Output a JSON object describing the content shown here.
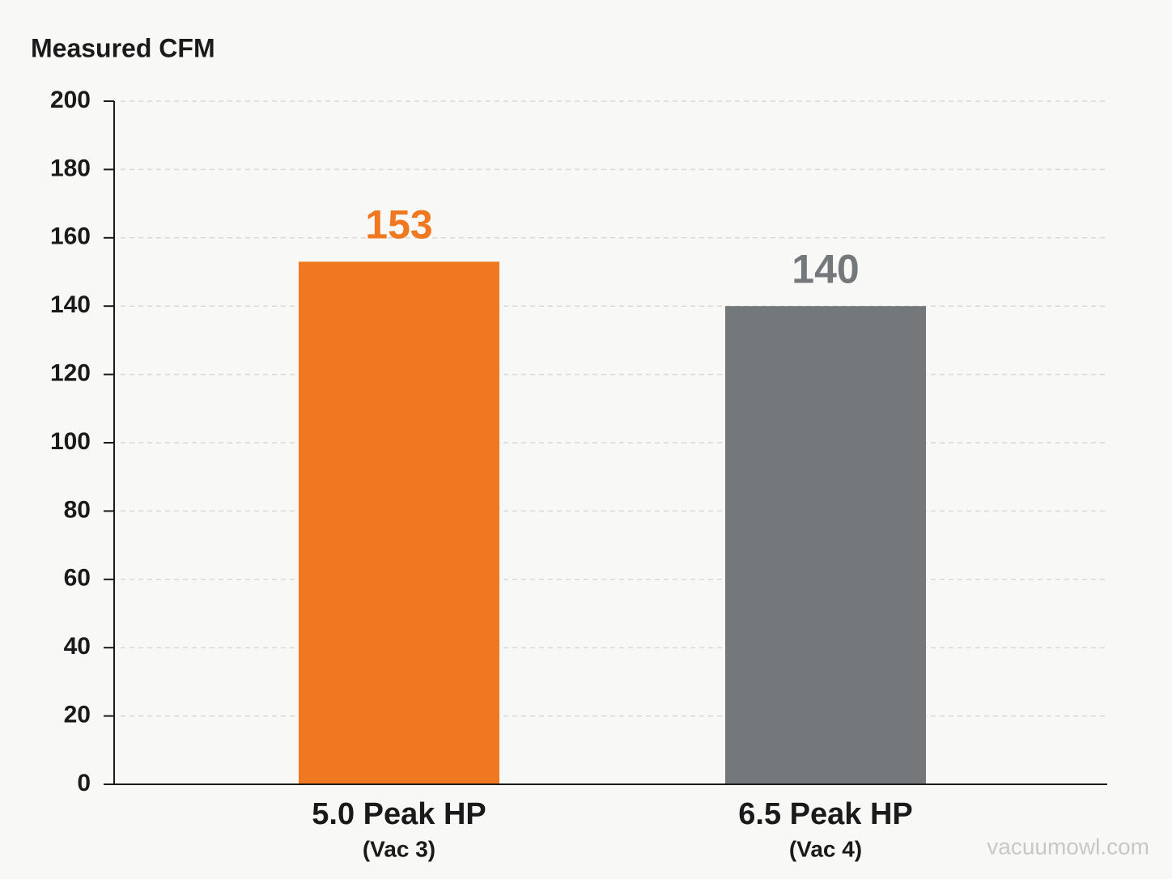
{
  "chart_data": {
    "type": "bar",
    "y_label": "Measured CFM",
    "categories": [
      "5.0 Peak HP",
      "6.5 Peak HP"
    ],
    "category_sublabels": [
      "(Vac 3)",
      "(Vac 4)"
    ],
    "values": [
      153,
      140
    ],
    "colors": [
      "#f07820",
      "#75787b"
    ],
    "ylim": [
      0,
      200
    ],
    "yticks": [
      0,
      20,
      40,
      60,
      80,
      100,
      120,
      140,
      160,
      180,
      200
    ],
    "grid": true,
    "watermark": "vacuumowl.com"
  }
}
